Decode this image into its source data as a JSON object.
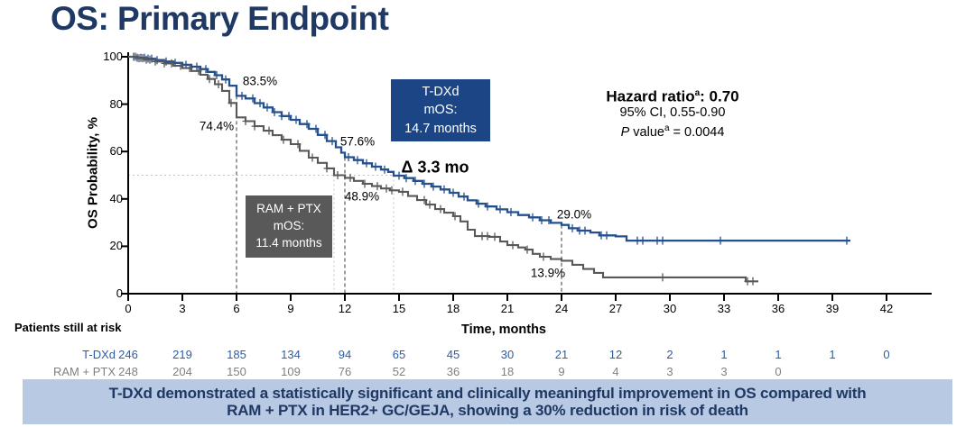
{
  "title": "OS: Primary Endpoint",
  "hazard": {
    "label": "Hazard ratio",
    "sup": "a",
    "value": ": 0.70",
    "ci": "95% CI, 0.55-0.90",
    "p_italic": "P",
    "p_mid": " value",
    "p_sup": "a",
    "p_rest": " = 0.0044"
  },
  "tdxd_box": {
    "line1": "T-DXd",
    "line2": "mOS:",
    "line3": "14.7 months"
  },
  "ram_box": {
    "line1": "RAM + PTX",
    "line2": "mOS:",
    "line3": "11.4 months"
  },
  "delta_label": "Δ 3.3 mo",
  "risk_table": {
    "title": "Patients still at risk",
    "rows": [
      {
        "label": "T-DXd",
        "color": "#2D5DA5",
        "values": [
          246,
          219,
          185,
          134,
          94,
          65,
          45,
          30,
          21,
          12,
          2,
          1,
          1,
          1,
          0
        ]
      },
      {
        "label": "RAM + PTX",
        "color": "#808080",
        "values": [
          248,
          204,
          150,
          109,
          76,
          52,
          36,
          18,
          9,
          4,
          3,
          3,
          0
        ]
      }
    ]
  },
  "banner": {
    "line1": "T-DXd demonstrated a statistically significant and clinically meaningful improvement in OS compared with",
    "line2": "RAM + PTX in HER2+ GC/GEJA, showing a 30% reduction in risk of death"
  },
  "colors": {
    "navy_text": "#1F3864",
    "banner_bg": "#B7C9E3",
    "tdxd_curve": "#24508F",
    "ram_curve": "#595959",
    "landmark_line": "#3D3D3D",
    "median_guide": "#C3C3C3",
    "axis": "#000000"
  },
  "chart_data": {
    "type": "line",
    "subtype": "kaplan-meier",
    "title": "OS: Primary Endpoint",
    "xlabel": "Time, months",
    "ylabel": "OS Probability, %",
    "xlim": [
      0,
      42
    ],
    "ylim": [
      0,
      100
    ],
    "xticks": [
      0,
      3,
      6,
      9,
      12,
      15,
      18,
      21,
      24,
      27,
      30,
      33,
      36,
      39,
      42
    ],
    "yticks": [
      0,
      20,
      40,
      60,
      80,
      100
    ],
    "grid": false,
    "series": [
      {
        "name": "T-DXd",
        "color": "#24508F",
        "median_months": 14.7,
        "points": [
          [
            0,
            100
          ],
          [
            0.5,
            99.6
          ],
          [
            1,
            99.2
          ],
          [
            1.5,
            98.6
          ],
          [
            2,
            98
          ],
          [
            2.5,
            97.4
          ],
          [
            3,
            96.6
          ],
          [
            3.5,
            95.8
          ],
          [
            4,
            94.8
          ],
          [
            4.4,
            93.6
          ],
          [
            4.8,
            92.2
          ],
          [
            5.2,
            90.4
          ],
          [
            5.6,
            87.8
          ],
          [
            6,
            83.5
          ],
          [
            6.5,
            82.4
          ],
          [
            7,
            80.4
          ],
          [
            7.5,
            78.6
          ],
          [
            8,
            76.6
          ],
          [
            8.5,
            75
          ],
          [
            9,
            73.4
          ],
          [
            9.5,
            71.6
          ],
          [
            10,
            69.6
          ],
          [
            10.5,
            67
          ],
          [
            11,
            64.4
          ],
          [
            11.5,
            61.8
          ],
          [
            11.8,
            59.5
          ],
          [
            12,
            57.6
          ],
          [
            12.5,
            56.4
          ],
          [
            13,
            55
          ],
          [
            13.5,
            53.6
          ],
          [
            14,
            52.4
          ],
          [
            14.4,
            51.4
          ],
          [
            14.7,
            49.8
          ],
          [
            15.3,
            48.8
          ],
          [
            15.8,
            47.6
          ],
          [
            16.3,
            46.4
          ],
          [
            16.8,
            45.2
          ],
          [
            17.3,
            44
          ],
          [
            17.8,
            42.6
          ],
          [
            18.3,
            41
          ],
          [
            18.8,
            39.4
          ],
          [
            19.3,
            38
          ],
          [
            19.8,
            36.8
          ],
          [
            20.4,
            35.6
          ],
          [
            21,
            34.4
          ],
          [
            21.6,
            33.2
          ],
          [
            22.2,
            32.2
          ],
          [
            22.8,
            31
          ],
          [
            23.4,
            29.9
          ],
          [
            24,
            29
          ],
          [
            24.4,
            27.6
          ],
          [
            24.9,
            26.6
          ],
          [
            25.6,
            25.8
          ],
          [
            26.1,
            24.6
          ],
          [
            27,
            24.2
          ],
          [
            27.6,
            22.4
          ],
          [
            40,
            22.4
          ]
        ],
        "censor_months": [
          0.3,
          0.5,
          0.7,
          0.9,
          1.1,
          1.3,
          1.6,
          2.1,
          2.6,
          3.2,
          3.8,
          4.3,
          4.9,
          5.4,
          6.3,
          6.9,
          7.3,
          7.7,
          8.1,
          8.5,
          8.9,
          9.3,
          9.9,
          10.4,
          10.9,
          11.3,
          12.2,
          12.7,
          13.2,
          13.7,
          14.2,
          15.0,
          15.4,
          15.9,
          16.4,
          16.9,
          17.5,
          18.0,
          18.6,
          19.4,
          19.9,
          20.6,
          21.2,
          22.4,
          22.9,
          23.3,
          24.6,
          25.0,
          25.3,
          26.2,
          26.5,
          28.2,
          28.5,
          29.3,
          29.6,
          32.8,
          39.8
        ]
      },
      {
        "name": "RAM + PTX",
        "color": "#595959",
        "median_months": 11.4,
        "points": [
          [
            0,
            100
          ],
          [
            0.5,
            99.4
          ],
          [
            1,
            98.8
          ],
          [
            1.5,
            98
          ],
          [
            2,
            97.2
          ],
          [
            2.5,
            96.2
          ],
          [
            3,
            95.2
          ],
          [
            3.5,
            94
          ],
          [
            4,
            92.4
          ],
          [
            4.4,
            90.6
          ],
          [
            4.8,
            88.4
          ],
          [
            5.2,
            85.6
          ],
          [
            5.6,
            80.5
          ],
          [
            6,
            74.4
          ],
          [
            6.5,
            72.8
          ],
          [
            7,
            70.7
          ],
          [
            7.5,
            68.8
          ],
          [
            8,
            66.9
          ],
          [
            8.5,
            65
          ],
          [
            9,
            63.1
          ],
          [
            9.5,
            60.3
          ],
          [
            10,
            57.4
          ],
          [
            10.5,
            55.2
          ],
          [
            11,
            52.9
          ],
          [
            11.4,
            50
          ],
          [
            12,
            48.9
          ],
          [
            12.5,
            47.6
          ],
          [
            13,
            46.4
          ],
          [
            13.5,
            45.4
          ],
          [
            14,
            44.4
          ],
          [
            14.5,
            43.6
          ],
          [
            15,
            43
          ],
          [
            15.5,
            41.2
          ],
          [
            16,
            39.5
          ],
          [
            16.5,
            37.6
          ],
          [
            17,
            35.7
          ],
          [
            17.5,
            34.2
          ],
          [
            18,
            32.7
          ],
          [
            18.4,
            30.5
          ],
          [
            18.8,
            27
          ],
          [
            19.2,
            24.3
          ],
          [
            20,
            24
          ],
          [
            20.6,
            22
          ],
          [
            21,
            20.5
          ],
          [
            21.6,
            19.5
          ],
          [
            22,
            18.6
          ],
          [
            22.4,
            16.8
          ],
          [
            22.8,
            15.6
          ],
          [
            23.4,
            14.6
          ],
          [
            24,
            13.9
          ],
          [
            24.6,
            12.2
          ],
          [
            25.2,
            10.4
          ],
          [
            25.8,
            8.8
          ],
          [
            26.3,
            6.9
          ],
          [
            33.8,
            6.9
          ],
          [
            34.2,
            5.2
          ],
          [
            34.9,
            5.2
          ]
        ],
        "censor_months": [
          0.4,
          0.6,
          0.8,
          1.0,
          1.2,
          1.5,
          2.0,
          2.4,
          2.9,
          3.4,
          3.9,
          4.5,
          5.0,
          5.7,
          6.5,
          7.0,
          7.8,
          8.6,
          9.4,
          10.2,
          11.0,
          11.6,
          12.3,
          13.1,
          13.8,
          14.3,
          14.6,
          15.2,
          16.4,
          16.7,
          17.3,
          18.1,
          19.6,
          19.9,
          20.3,
          21.3,
          22.1,
          23.0,
          29.6,
          34.3,
          34.6
        ]
      }
    ],
    "landmark_lines": [
      {
        "month": 6,
        "top_pct": 83.5
      },
      {
        "month": 12,
        "top_pct": 57.6
      },
      {
        "month": 24,
        "top_pct": 29.0
      }
    ],
    "median_guides": {
      "pct": 50,
      "months": [
        11.4,
        14.7
      ]
    },
    "annotations": [
      {
        "text": "83.5%",
        "m": 7.3,
        "p": 89.7
      },
      {
        "text": "74.4%",
        "m": 4.9,
        "p": 70.7
      },
      {
        "text": "57.6%",
        "m": 12.7,
        "p": 64.3
      },
      {
        "text": "48.9%",
        "m": 12.95,
        "p": 41.1
      },
      {
        "text": "29.0%",
        "m": 24.7,
        "p": 33.5
      },
      {
        "text": "13.9%",
        "m": 23.25,
        "p": 8.75
      }
    ]
  }
}
